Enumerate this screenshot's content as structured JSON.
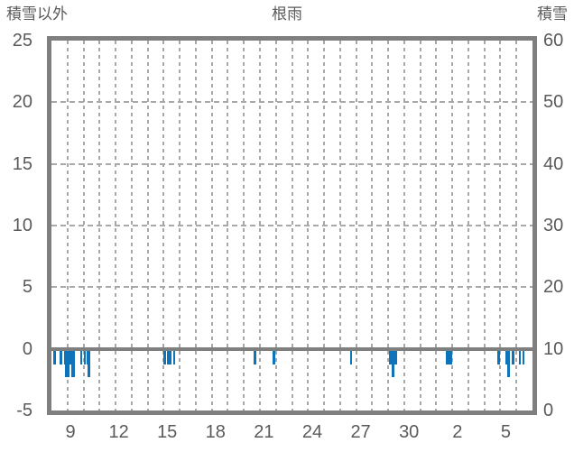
{
  "header": {
    "left_axis_title": "積雪以外",
    "chart_title": "根雨",
    "right_axis_title": "積雪"
  },
  "colors": {
    "bar": "#0e73b8",
    "frame": "#7f7f7f",
    "grid": "#a8a8a8",
    "text": "#5a5a5a",
    "background": "#ffffff"
  },
  "chart_data": {
    "type": "bar",
    "title": "根雨",
    "left_axis": {
      "title": "積雪以外",
      "min": -5,
      "max": 25,
      "tick_values": [
        25,
        20,
        15,
        10,
        5,
        0,
        -5
      ],
      "tick_labels": [
        "25",
        "20",
        "15",
        "10",
        "5",
        "0",
        "-5"
      ]
    },
    "right_axis": {
      "title": "積雪",
      "min": 0,
      "max": 60,
      "tick_values": [
        60,
        50,
        40,
        30,
        20,
        10,
        0
      ],
      "tick_labels": [
        "60",
        "50",
        "40",
        "30",
        "20",
        "10",
        "0"
      ]
    },
    "x_axis": {
      "tick_labels": [
        "9",
        "12",
        "15",
        "18",
        "21",
        "24",
        "27",
        "30",
        "2",
        "5"
      ],
      "span_days": 30,
      "gridline_every_days": 1,
      "grid": "dashed"
    },
    "h_gridlines_left_values": [
      20,
      15,
      10,
      5
    ],
    "zero_line_left_value": 0,
    "legend": "none",
    "series": [
      {
        "name": "積雪以外",
        "axis": "left",
        "type": "bar",
        "bars": [
          {
            "start_day": 0.11,
            "end_day": 0.28,
            "value": -1
          },
          {
            "start_day": 0.51,
            "end_day": 0.68,
            "value": -1
          },
          {
            "start_day": 0.79,
            "end_day": 0.86,
            "value": -1
          },
          {
            "start_day": 0.86,
            "end_day": 1.14,
            "value": -2
          },
          {
            "start_day": 1.14,
            "end_day": 1.24,
            "value": -1
          },
          {
            "start_day": 1.24,
            "end_day": 1.45,
            "value": -2
          },
          {
            "start_day": 1.78,
            "end_day": 1.93,
            "value": -1
          },
          {
            "start_day": 2.01,
            "end_day": 2.14,
            "value": -1
          },
          {
            "start_day": 2.19,
            "end_day": 2.27,
            "value": -1
          },
          {
            "start_day": 2.27,
            "end_day": 2.42,
            "value": -2
          },
          {
            "start_day": 6.96,
            "end_day": 7.13,
            "value": -1
          },
          {
            "start_day": 7.22,
            "end_day": 7.49,
            "value": -1
          },
          {
            "start_day": 7.61,
            "end_day": 7.73,
            "value": -1
          },
          {
            "start_day": 12.63,
            "end_day": 12.78,
            "value": -1
          },
          {
            "start_day": 13.79,
            "end_day": 13.94,
            "value": -1
          },
          {
            "start_day": 18.61,
            "end_day": 18.76,
            "value": -1
          },
          {
            "start_day": 21.07,
            "end_day": 21.24,
            "value": -1
          },
          {
            "start_day": 21.24,
            "end_day": 21.39,
            "value": -2
          },
          {
            "start_day": 21.39,
            "end_day": 21.57,
            "value": -1
          },
          {
            "start_day": 24.61,
            "end_day": 24.99,
            "value": -1
          },
          {
            "start_day": 27.8,
            "end_day": 27.99,
            "value": -1
          },
          {
            "start_day": 28.31,
            "end_day": 28.44,
            "value": -1
          },
          {
            "start_day": 28.44,
            "end_day": 28.59,
            "value": -2
          },
          {
            "start_day": 28.72,
            "end_day": 28.87,
            "value": -1
          },
          {
            "start_day": 29.14,
            "end_day": 29.27,
            "value": -1
          },
          {
            "start_day": 29.36,
            "end_day": 29.51,
            "value": -1
          }
        ]
      }
    ]
  }
}
